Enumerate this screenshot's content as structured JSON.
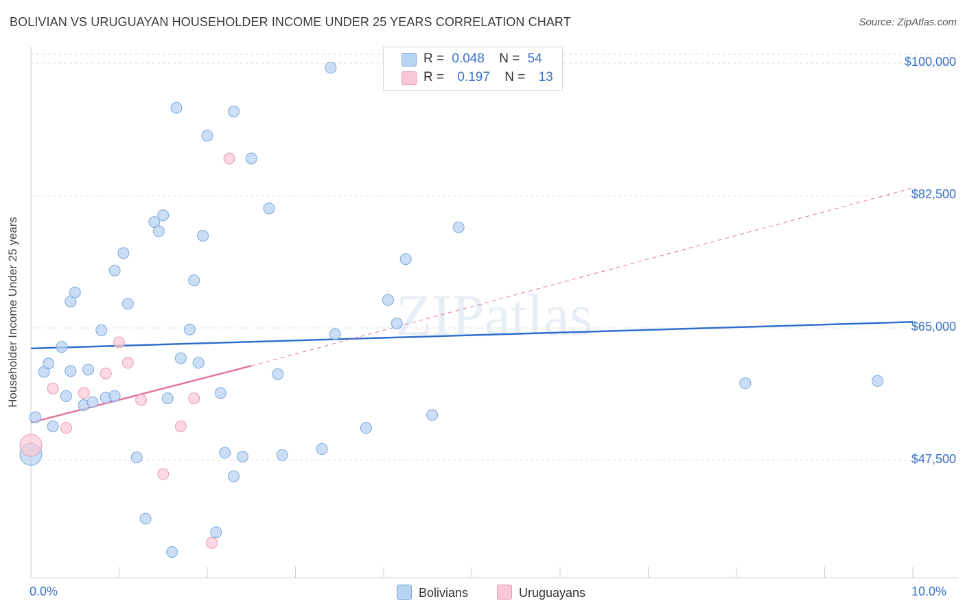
{
  "title": "BOLIVIAN VS URUGUAYAN HOUSEHOLDER INCOME UNDER 25 YEARS CORRELATION CHART",
  "source": "Source: ZipAtlas.com",
  "watermark": "ZIPatlas",
  "colors": {
    "blue_fill": "#b9d3f2",
    "blue_stroke": "#7aa8dc",
    "blue_line": "#2f6fcd",
    "pink_fill": "#f9c7d6",
    "pink_stroke": "#e89ab3",
    "pink_line": "#e0779d",
    "tick_text": "#3a72c4",
    "grid": "#dedede"
  },
  "legend": {
    "rows": [
      {
        "r_label": "R =",
        "r_value": "0.048",
        "n_label": "N =",
        "n_value": "54",
        "color": "#b9d3f2"
      },
      {
        "r_label": "R =",
        "r_value": "0.197",
        "n_label": "N =",
        "n_value": "13",
        "color": "#f9c7d6"
      }
    ]
  },
  "bottom_legend": [
    {
      "label": "Bolivians",
      "color": "#b9d3f2"
    },
    {
      "label": "Uruguayans",
      "color": "#f9c7d6"
    }
  ],
  "chart_data": {
    "type": "scatter",
    "title": "BOLIVIAN VS URUGUAYAN HOUSEHOLDER INCOME UNDER 25 YEARS CORRELATION CHART",
    "xlabel": "",
    "ylabel": "Householder Income Under 25 years",
    "xlim": [
      0,
      10
    ],
    "ylim": [
      32000,
      102000
    ],
    "x_tick_labels": [
      "0.0%",
      "10.0%"
    ],
    "x_ticks": [
      0,
      1,
      2,
      3,
      4,
      5,
      6,
      7,
      8,
      9,
      10
    ],
    "y_ticks": [
      47500,
      65000,
      82500,
      100000
    ],
    "y_tick_labels": [
      "$47,500",
      "$65,000",
      "$82,500",
      "$100,000"
    ],
    "series": [
      {
        "name": "Bolivians",
        "r": 0.048,
        "n": 54,
        "points": [
          [
            0.05,
            53200
          ],
          [
            0.0,
            48300
          ],
          [
            0.15,
            59200
          ],
          [
            0.2,
            60300
          ],
          [
            0.25,
            52000
          ],
          [
            0.35,
            62500
          ],
          [
            0.4,
            56000
          ],
          [
            0.45,
            59300
          ],
          [
            0.45,
            68500
          ],
          [
            0.5,
            69700
          ],
          [
            0.6,
            54800
          ],
          [
            0.65,
            59500
          ],
          [
            0.7,
            55200
          ],
          [
            0.8,
            64700
          ],
          [
            0.85,
            55800
          ],
          [
            0.95,
            56000
          ],
          [
            0.95,
            72600
          ],
          [
            1.05,
            74900
          ],
          [
            1.1,
            68200
          ],
          [
            1.2,
            47900
          ],
          [
            1.3,
            39800
          ],
          [
            1.4,
            79000
          ],
          [
            1.45,
            77800
          ],
          [
            1.5,
            79900
          ],
          [
            1.55,
            55700
          ],
          [
            1.6,
            35400
          ],
          [
            1.65,
            94100
          ],
          [
            1.7,
            61000
          ],
          [
            1.8,
            64800
          ],
          [
            1.85,
            71300
          ],
          [
            1.9,
            60400
          ],
          [
            1.95,
            77200
          ],
          [
            2.0,
            90400
          ],
          [
            2.1,
            38000
          ],
          [
            2.15,
            56400
          ],
          [
            2.2,
            48500
          ],
          [
            2.3,
            93600
          ],
          [
            2.3,
            45400
          ],
          [
            2.4,
            48000
          ],
          [
            2.5,
            87400
          ],
          [
            2.7,
            80800
          ],
          [
            2.8,
            58900
          ],
          [
            2.85,
            48200
          ],
          [
            3.3,
            49000
          ],
          [
            3.4,
            99400
          ],
          [
            3.45,
            64200
          ],
          [
            3.8,
            51800
          ],
          [
            4.05,
            68700
          ],
          [
            4.15,
            65600
          ],
          [
            4.25,
            74100
          ],
          [
            4.55,
            53500
          ],
          [
            4.85,
            78300
          ],
          [
            8.1,
            57700
          ],
          [
            9.6,
            58000
          ]
        ]
      },
      {
        "name": "Uruguayans",
        "r": 0.197,
        "n": 13,
        "points": [
          [
            0.0,
            49500
          ],
          [
            0.25,
            57000
          ],
          [
            0.4,
            51800
          ],
          [
            0.6,
            56400
          ],
          [
            0.85,
            59000
          ],
          [
            1.0,
            63100
          ],
          [
            1.1,
            60400
          ],
          [
            1.25,
            55500
          ],
          [
            1.5,
            45700
          ],
          [
            1.7,
            52000
          ],
          [
            1.85,
            55700
          ],
          [
            2.05,
            36600
          ],
          [
            2.25,
            87400
          ]
        ]
      }
    ],
    "trendlines": [
      {
        "series": "Bolivians",
        "from": [
          0.0,
          62300
        ],
        "to": [
          10.0,
          65800
        ],
        "style": "solid"
      },
      {
        "series": "Uruguayans",
        "from": [
          0.0,
          52500
        ],
        "to": [
          2.5,
          60000
        ],
        "style": "solid"
      },
      {
        "series": "Uruguayans",
        "from": [
          2.5,
          60000
        ],
        "to": [
          10.0,
          83500
        ],
        "style": "dashed"
      }
    ]
  }
}
